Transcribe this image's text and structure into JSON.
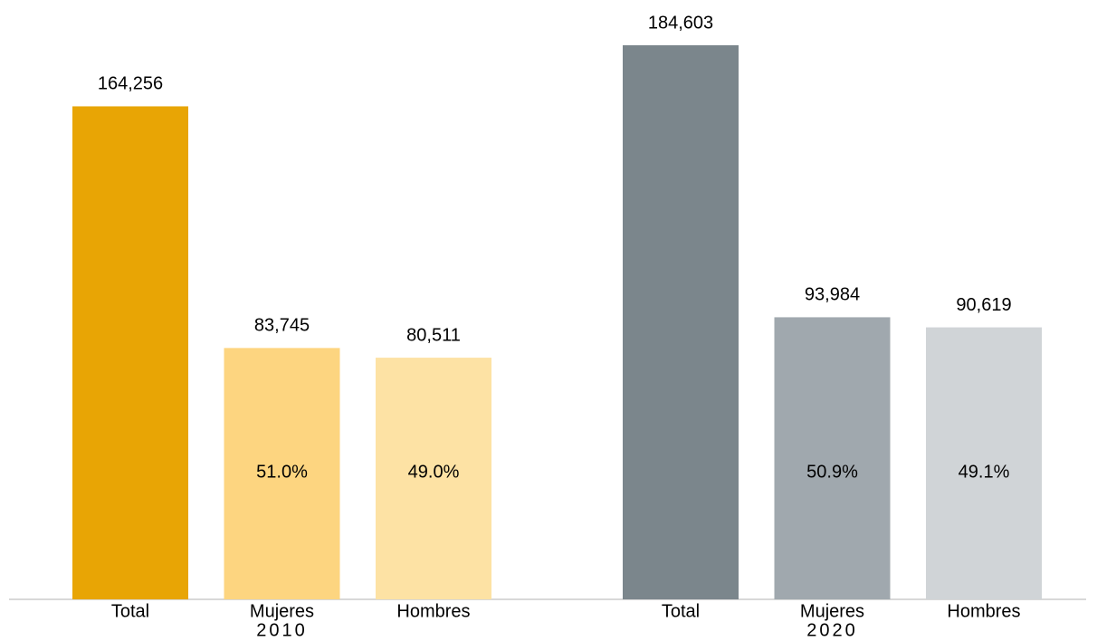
{
  "chart_data": {
    "type": "bar",
    "groups": [
      {
        "name": "2010",
        "bars": [
          {
            "category": "Total",
            "value": 164256,
            "value_label": "164,256",
            "color": "#E8A505"
          },
          {
            "category": "Mujeres",
            "value": 83745,
            "value_label": "83,745",
            "color": "#FDD580",
            "share": 51.0,
            "share_label": "51.0%"
          },
          {
            "category": "Hombres",
            "value": 80511,
            "value_label": "80,511",
            "color": "#FDE2A4",
            "share": 49.0,
            "share_label": "49.0%"
          }
        ]
      },
      {
        "name": "2020",
        "bars": [
          {
            "category": "Total",
            "value": 184603,
            "value_label": "184,603",
            "color": "#7B868C"
          },
          {
            "category": "Mujeres",
            "value": 93984,
            "value_label": "93,984",
            "color": "#A0A8AE",
            "share": 50.9,
            "share_label": "50.9%"
          },
          {
            "category": "Hombres",
            "value": 90619,
            "value_label": "90,619",
            "color": "#D0D4D7",
            "share": 49.1,
            "share_label": "49.1%"
          }
        ]
      }
    ]
  }
}
